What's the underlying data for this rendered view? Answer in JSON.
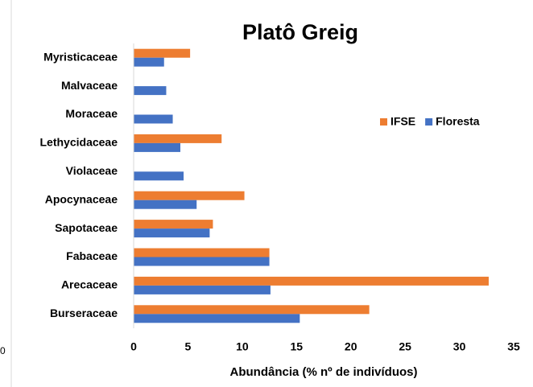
{
  "chart_data": {
    "type": "hbar",
    "title": "Platô Greig",
    "categories": [
      "Myristicaceae",
      "Malvaceae",
      "Moraceae",
      "Lethycidaceae",
      "Violaceae",
      "Apocynaceae",
      "Sapotaceae",
      "Fabaceae",
      "Arecaceae",
      "Burseraceae"
    ],
    "series": [
      {
        "name": "IFSE",
        "color": "#ed7d31",
        "values": [
          5.2,
          null,
          null,
          8.1,
          null,
          10.2,
          7.3,
          12.5,
          32.7,
          21.7
        ]
      },
      {
        "name": "Floresta",
        "color": "#4472c4",
        "values": [
          2.8,
          3.0,
          3.6,
          4.3,
          4.6,
          5.8,
          7.0,
          12.5,
          12.6,
          15.3
        ]
      }
    ],
    "xlabel": "Abundância (% nº de indivíduos)",
    "xlim": [
      0,
      35
    ],
    "xticks": [
      0,
      5,
      10,
      15,
      20,
      25,
      30,
      35
    ],
    "grid": false,
    "legend": "right",
    "clipped_text": "0"
  }
}
